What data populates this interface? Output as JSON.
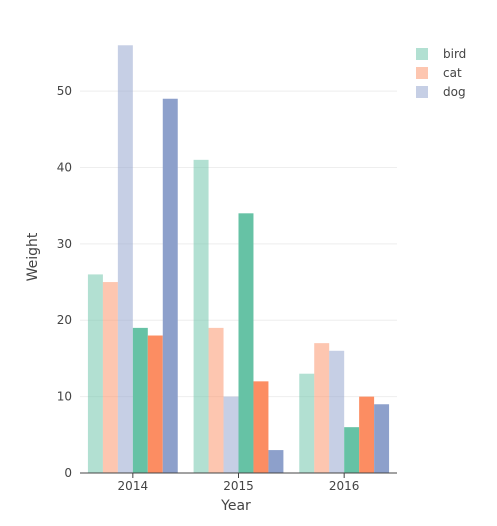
{
  "chart_data": {
    "type": "bar",
    "title": "",
    "xlabel": "Year",
    "ylabel": "Weight",
    "categories": [
      "2014",
      "2015",
      "2016"
    ],
    "ylim": [
      0,
      58
    ],
    "yticks": [
      0,
      10,
      20,
      30,
      40,
      50
    ],
    "grid": true,
    "legend_position": "top-right",
    "series": [
      {
        "name": "bird",
        "values": [
          26,
          41,
          13
        ],
        "color": "#66c2a5",
        "opacity": 0.5,
        "legend": true
      },
      {
        "name": "cat",
        "values": [
          25,
          19,
          17
        ],
        "color": "#fc8d62",
        "opacity": 0.5,
        "legend": true
      },
      {
        "name": "dog",
        "values": [
          56,
          10,
          16
        ],
        "color": "#8da0cb",
        "opacity": 0.5,
        "legend": true
      },
      {
        "name": "",
        "values": [
          19,
          34,
          6
        ],
        "color": "#66c2a5",
        "opacity": 1.0,
        "legend": false
      },
      {
        "name": "",
        "values": [
          18,
          12,
          10
        ],
        "color": "#fc8d62",
        "opacity": 1.0,
        "legend": false
      },
      {
        "name": "",
        "values": [
          49,
          3,
          9
        ],
        "color": "#8da0cb",
        "opacity": 1.0,
        "legend": false
      }
    ]
  }
}
